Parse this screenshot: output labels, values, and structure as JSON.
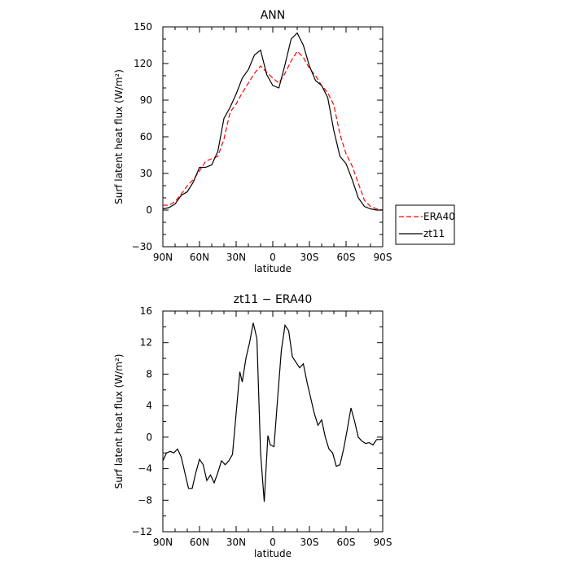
{
  "chart_data": [
    {
      "type": "line",
      "title": "ANN",
      "xlabel": "latitude",
      "ylabel": "Surf latent heat flux (W/m²)",
      "xlim": [
        90,
        -90
      ],
      "ylim": [
        -30,
        150
      ],
      "xticks": [
        90,
        60,
        30,
        0,
        -30,
        -60,
        -90
      ],
      "xtick_labels": [
        "90N",
        "60N",
        "30N",
        "0",
        "30S",
        "60S",
        "90S"
      ],
      "yticks": [
        -30,
        0,
        30,
        60,
        90,
        120,
        150
      ],
      "ytick_labels": [
        "−30",
        "0",
        "30",
        "60",
        "90",
        "120",
        "150"
      ],
      "legend_position": "right",
      "series": [
        {
          "name": "ERA40",
          "color": "#ff0000",
          "style": "dashed",
          "x": [
            90,
            85,
            80,
            75,
            70,
            65,
            60,
            55,
            50,
            45,
            40,
            35,
            30,
            25,
            20,
            15,
            10,
            5,
            0,
            -5,
            -10,
            -15,
            -20,
            -25,
            -30,
            -35,
            -40,
            -45,
            -50,
            -55,
            -60,
            -65,
            -70,
            -75,
            -80,
            -85,
            -90
          ],
          "values": [
            4,
            4,
            7,
            13,
            20,
            25,
            32,
            40,
            42,
            44,
            58,
            80,
            87,
            96,
            104,
            112,
            118,
            113,
            108,
            104,
            112,
            122,
            130,
            125,
            116,
            110,
            102,
            96,
            86,
            62,
            46,
            36,
            22,
            8,
            3,
            1,
            0
          ]
        },
        {
          "name": "zt11",
          "color": "#000000",
          "style": "solid",
          "x": [
            90,
            85,
            80,
            75,
            70,
            65,
            60,
            55,
            50,
            45,
            40,
            35,
            30,
            25,
            20,
            15,
            10,
            5,
            0,
            -5,
            -10,
            -15,
            -20,
            -25,
            -30,
            -35,
            -40,
            -45,
            -50,
            -55,
            -60,
            -65,
            -70,
            -75,
            -80,
            -85,
            -90
          ],
          "values": [
            1,
            2,
            5,
            12,
            15,
            23,
            35,
            35,
            37,
            48,
            75,
            84,
            95,
            108,
            115,
            127,
            131,
            111,
            102,
            100,
            119,
            140,
            145,
            135,
            118,
            106,
            102,
            92,
            65,
            44,
            38,
            25,
            10,
            3,
            1,
            0,
            0
          ]
        }
      ]
    },
    {
      "type": "line",
      "title": "zt11 − ERA40",
      "xlabel": "latitude",
      "ylabel": "Surf latent heat flux (W/m²)",
      "xlim": [
        90,
        -90
      ],
      "ylim": [
        -12,
        16
      ],
      "xticks": [
        90,
        60,
        30,
        0,
        -30,
        -60,
        -90
      ],
      "xtick_labels": [
        "90N",
        "60N",
        "30N",
        "0",
        "30S",
        "60S",
        "90S"
      ],
      "yticks": [
        -12,
        -8,
        -4,
        0,
        4,
        8,
        12,
        16
      ],
      "ytick_labels": [
        "−12",
        "−8",
        "−4",
        "0",
        "4",
        "8",
        "12",
        "16"
      ],
      "series": [
        {
          "color": "#000000",
          "style": "solid",
          "x": [
            90,
            87,
            84,
            81,
            78,
            75,
            72,
            69,
            66,
            63,
            60,
            57,
            54,
            51,
            48,
            45,
            42,
            39,
            36,
            33,
            30,
            27,
            25,
            22,
            19,
            16,
            13,
            10,
            7,
            4,
            2,
            -1,
            -4,
            -7,
            -10,
            -13,
            -16,
            -19,
            -22,
            -25,
            -28,
            -31,
            -34,
            -37,
            -40,
            -43,
            -46,
            -49,
            -52,
            -55,
            -58,
            -61,
            -64,
            -67,
            -70,
            -73,
            -76,
            -79,
            -82,
            -85,
            -88,
            -90
          ],
          "values": [
            -3,
            -2,
            -1.8,
            -2,
            -1.5,
            -2.5,
            -4.5,
            -6.5,
            -6.5,
            -4.5,
            -2.8,
            -3.5,
            -5.5,
            -4.8,
            -5.8,
            -4.5,
            -3,
            -3.5,
            -3,
            -2.2,
            3,
            8.3,
            7,
            10,
            12,
            14.5,
            12.5,
            -2,
            -8.2,
            0.2,
            -1,
            -1.2,
            5,
            11,
            14.2,
            13.5,
            10.2,
            9.5,
            8.8,
            9.3,
            7,
            5,
            3,
            1.5,
            2.2,
            0,
            -1.5,
            -2,
            -3.7,
            -3.5,
            -1.5,
            1,
            3.7,
            2,
            0,
            -0.5,
            -0.8,
            -0.7,
            -1,
            -0.3,
            -0.3,
            -0.2
          ]
        }
      ]
    }
  ]
}
